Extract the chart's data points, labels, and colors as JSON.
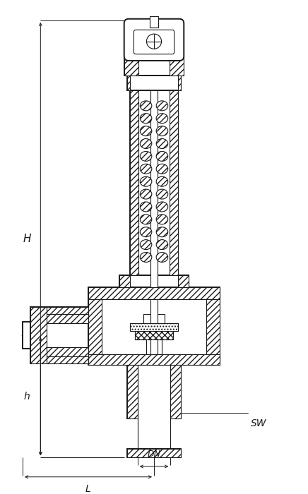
{
  "bg_color": "#ffffff",
  "line_color": "#1a1a1a",
  "dim_color": "#1a1a1a",
  "fig_width": 4.36,
  "fig_height": 7.0,
  "dpi": 100,
  "xlim": [
    0,
    100
  ],
  "ylim": [
    0,
    160
  ],
  "labels": {
    "H": "H",
    "h": "h",
    "DN": "DN",
    "L": "L",
    "SW": "SW"
  }
}
